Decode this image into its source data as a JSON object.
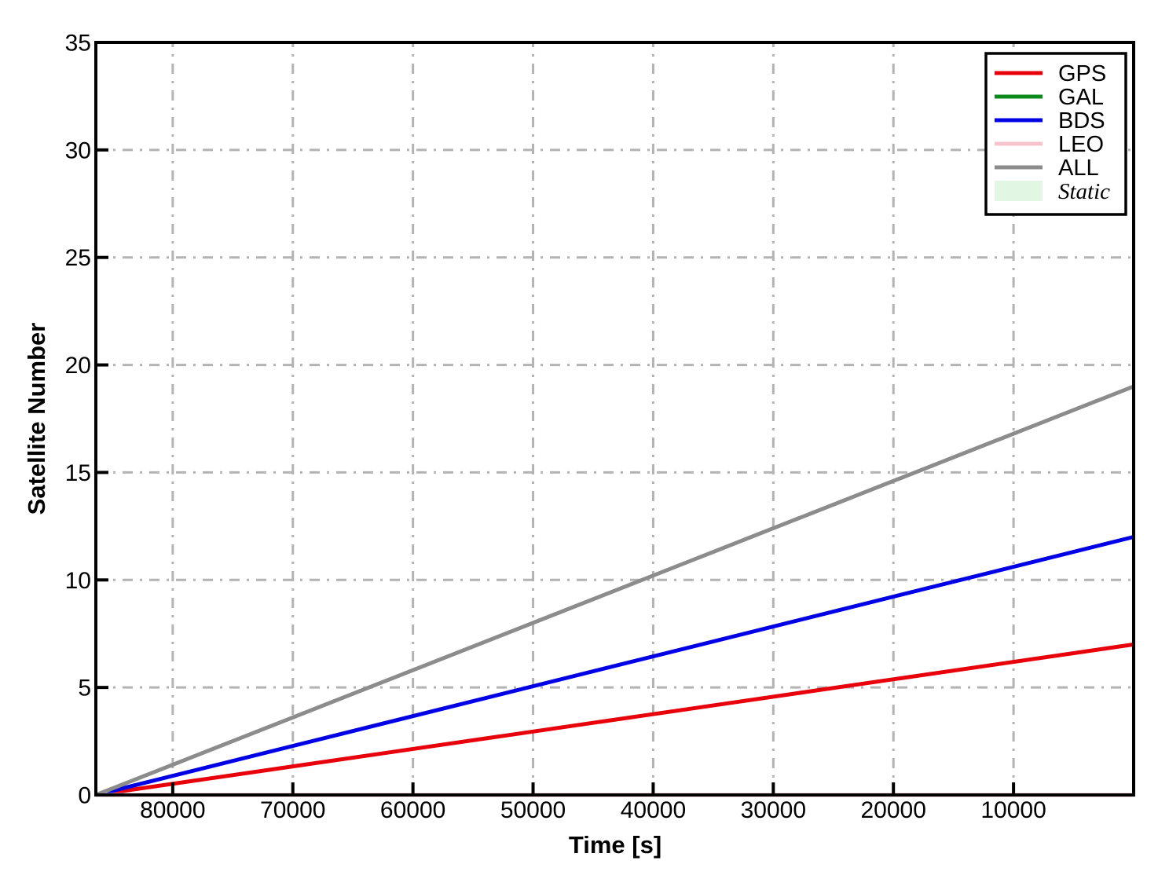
{
  "chart_data": {
    "type": "line",
    "title": "",
    "xlabel": "Time [s]",
    "ylabel": "Satellite Number",
    "x_axis": {
      "min": 0,
      "max": 86400,
      "reversed": true,
      "tick_values": [
        80000,
        70000,
        60000,
        50000,
        40000,
        30000,
        20000,
        10000
      ],
      "tick_labels": [
        "80000",
        "70000",
        "60000",
        "50000",
        "40000",
        "30000",
        "20000",
        "10000"
      ]
    },
    "y_axis": {
      "min": 0,
      "max": 35,
      "tick_values": [
        0,
        5,
        10,
        15,
        20,
        25,
        30,
        35
      ],
      "tick_labels": [
        "0",
        "5",
        "10",
        "15",
        "20",
        "25",
        "30",
        "35"
      ]
    },
    "grid": {
      "visible": true,
      "style": "dash-dot",
      "color": "#b3b3b3"
    },
    "series": [
      {
        "name": "GPS",
        "color": "#e8000b",
        "points": [
          [
            86400,
            0
          ],
          [
            0,
            7
          ]
        ]
      },
      {
        "name": "GAL",
        "color": "#0c8a1e",
        "points": [
          [
            86400,
            0
          ],
          [
            0,
            0
          ]
        ]
      },
      {
        "name": "BDS",
        "color": "#0000e6",
        "points": [
          [
            86400,
            0
          ],
          [
            0,
            12
          ]
        ]
      },
      {
        "name": "LEO",
        "color": "#f9c3cd",
        "points": [
          [
            86400,
            0
          ],
          [
            0,
            0
          ]
        ]
      },
      {
        "name": "ALL",
        "color": "#8c8c8c",
        "points": [
          [
            86400,
            0
          ],
          [
            0,
            19
          ]
        ]
      }
    ],
    "legend": {
      "position": "top-right",
      "entries": [
        {
          "label": "GPS",
          "color": "#e8000b",
          "type": "line",
          "italic": false
        },
        {
          "label": "GAL",
          "color": "#0c8a1e",
          "type": "line",
          "italic": false
        },
        {
          "label": "BDS",
          "color": "#0000e6",
          "type": "line",
          "italic": false
        },
        {
          "label": "LEO",
          "color": "#f9c3cd",
          "type": "line",
          "italic": false
        },
        {
          "label": "ALL",
          "color": "#8c8c8c",
          "type": "line",
          "italic": false
        },
        {
          "label": "Static",
          "color": "#e2f7e3",
          "type": "patch",
          "italic": true
        }
      ]
    }
  }
}
